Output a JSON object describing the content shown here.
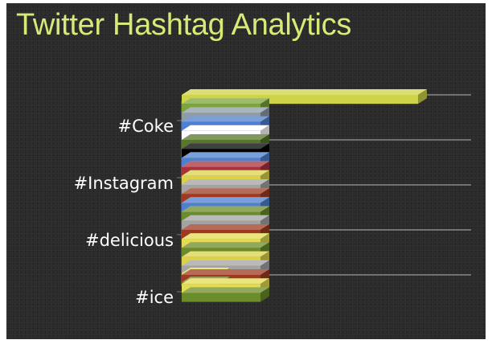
{
  "title": "Twitter Hashtag Analytics",
  "chart_data": {
    "type": "bar",
    "orientation": "horizontal",
    "style": "3d",
    "title": "Twitter Hashtag Analytics",
    "xlabel": "",
    "ylabel": "",
    "categories": [
      "#ice",
      "#delicious",
      "#Instagram",
      "#Coke"
    ],
    "xlim": [
      0,
      100
    ],
    "grid": true,
    "legend": "none",
    "series": [
      {
        "color": "#6b8c2a",
        "values": [
          10,
          20,
          20,
          20
        ]
      },
      {
        "color": "#e3dc52",
        "values": [
          10,
          20,
          20,
          20
        ]
      },
      {
        "color": "#9e3a22",
        "values": [
          0,
          20,
          20,
          20
        ]
      },
      {
        "color": "#a3a3a3",
        "values": [
          0,
          20,
          20,
          20
        ]
      },
      {
        "color": "#dcd24a",
        "values": [
          0,
          20,
          20,
          20
        ]
      },
      {
        "color": "#a8323a",
        "values": [
          0,
          20,
          20,
          20
        ]
      },
      {
        "color": "#9ccb3c",
        "values": [
          0,
          20,
          20,
          20
        ]
      },
      {
        "color": "#000000",
        "values": [
          0,
          20,
          20,
          20
        ]
      },
      {
        "color": "#57772a",
        "values": [
          0,
          20,
          20,
          20
        ]
      },
      {
        "color": "#ffffff",
        "values": [
          0,
          20,
          20,
          20
        ]
      },
      {
        "color": "#4f7fd0",
        "values": [
          0,
          20,
          20,
          20
        ]
      },
      {
        "color": "#8f9ca8",
        "values": [
          0,
          20,
          20,
          20
        ]
      },
      {
        "color": "#7ca53a",
        "values": [
          0,
          20,
          20,
          20
        ]
      },
      {
        "color": "#cfd34a",
        "values": [
          0,
          0,
          0,
          60
        ]
      }
    ]
  }
}
